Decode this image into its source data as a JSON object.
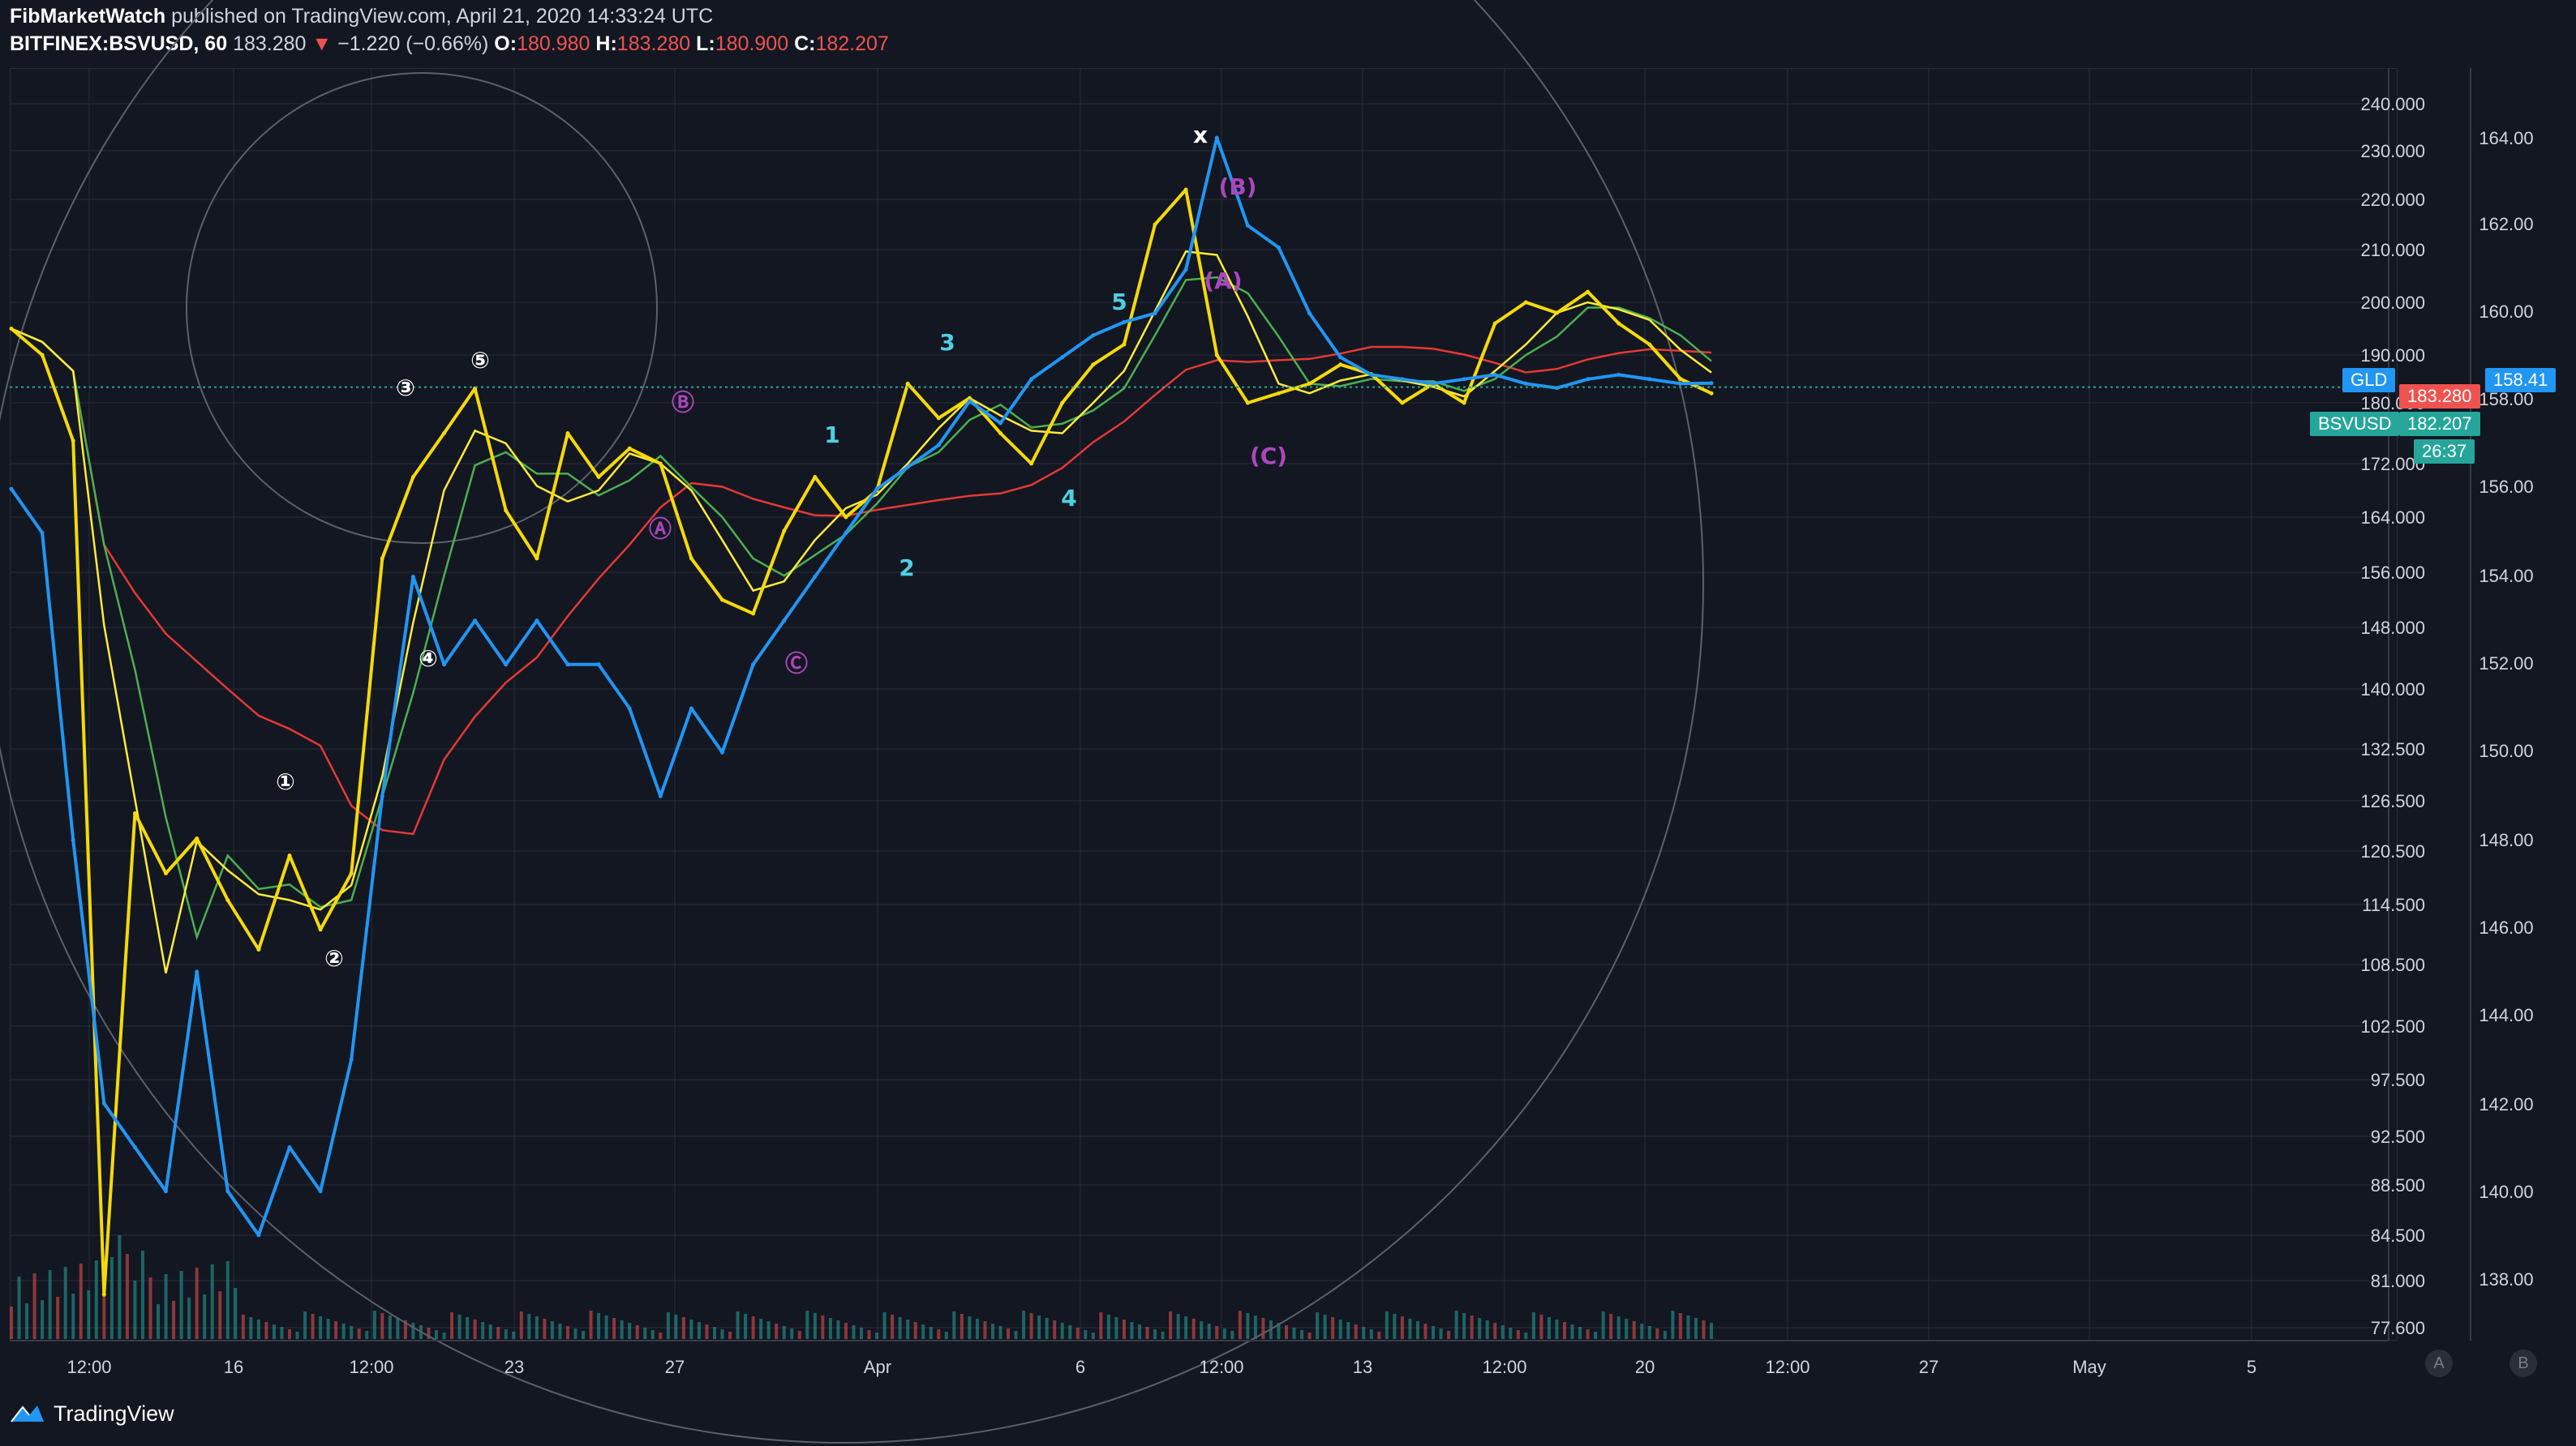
{
  "header": {
    "publisher": "FibMarketWatch",
    "published_text": "published on TradingView.com, April 21, 2020 14:33:24 UTC",
    "symbol": "BITFINEX:BSVUSD, 60",
    "last": "183.280",
    "change_arrow": "▼",
    "change": "−1.220 (−0.66%)",
    "o_label": "O:",
    "o_value": "180.980",
    "h_label": "H:",
    "h_value": "183.280",
    "l_label": "L:",
    "l_value": "180.900",
    "c_label": "C:",
    "c_value": "182.207"
  },
  "price_tags": {
    "gld_label": "GLD",
    "gld_value": "158.41",
    "last_value": "183.280",
    "bsv_label": "BSVUSD",
    "bsv_value": "182.207",
    "countdown": "26:37"
  },
  "footer": {
    "brand": "TradingView",
    "logo_icon": "tradingview-logo-icon"
  },
  "axis_buttons": {
    "a": "A",
    "b": "B"
  },
  "colors": {
    "background": "#131722",
    "grid": "#2a2e39",
    "price_line": "#f5d90a",
    "gld_line": "#2196f3",
    "ma_red": "#e53935",
    "ma_green": "#4caf50",
    "ma_yellow": "#ffeb3b",
    "up": "#26a69a",
    "down": "#ef5350"
  },
  "chart_data": {
    "type": "line",
    "x_ticks": [
      "12:00",
      "16",
      "12:00",
      "23",
      "27",
      "Apr",
      "6",
      "12:00",
      "13",
      "12:00",
      "20",
      "12:00",
      "27",
      "May",
      "5"
    ],
    "left_axis_ticks": [
      "240.000",
      "230.000",
      "220.000",
      "210.000",
      "200.000",
      "190.000",
      "180.000",
      "172.000",
      "164.000",
      "156.000",
      "148.000",
      "140.000",
      "132.500",
      "126.500",
      "120.500",
      "114.500",
      "108.500",
      "102.500",
      "97.500",
      "92.500",
      "88.500",
      "84.500",
      "81.000",
      "77.600"
    ],
    "right_axis_ticks": [
      "164.00",
      "162.00",
      "160.00",
      "158.00",
      "156.00",
      "154.00",
      "152.00",
      "150.00",
      "148.00",
      "146.00",
      "144.00",
      "142.00",
      "140.00",
      "138.00"
    ],
    "series": [
      {
        "name": "BSVUSD",
        "axis": "left",
        "x_index": [
          0,
          4,
          8,
          12,
          16,
          20,
          24,
          28,
          32,
          36,
          40,
          44,
          48,
          52,
          56,
          60,
          64,
          68,
          72,
          76,
          80,
          84,
          88,
          92,
          96,
          100,
          104,
          108,
          112,
          116,
          120,
          124,
          128,
          132,
          136,
          140,
          144,
          148,
          152,
          156,
          160,
          164,
          168,
          172,
          176,
          180,
          184,
          188,
          192,
          196,
          200,
          204,
          208,
          212,
          216,
          220
        ],
        "values": [
          195,
          190,
          175,
          80,
          125,
          118,
          122,
          115,
          110,
          120,
          112,
          118,
          158,
          170,
          176,
          183,
          165,
          158,
          176,
          170,
          174,
          172,
          158,
          152,
          150,
          162,
          170,
          164,
          168,
          184,
          178,
          181,
          176,
          172,
          180,
          188,
          192,
          215,
          222,
          190,
          180,
          182,
          184,
          188,
          186,
          180,
          184,
          180,
          196,
          200,
          198,
          202,
          196,
          192,
          185,
          182
        ]
      },
      {
        "name": "GLD",
        "axis": "right",
        "x_index": [
          0,
          4,
          8,
          12,
          16,
          20,
          24,
          28,
          32,
          36,
          40,
          44,
          48,
          52,
          56,
          60,
          64,
          68,
          72,
          76,
          80,
          84,
          88,
          92,
          96,
          100,
          104,
          108,
          112,
          116,
          120,
          124,
          128,
          132,
          136,
          140,
          144,
          148,
          152,
          156,
          160,
          164,
          168,
          172,
          176,
          180,
          184,
          188,
          192,
          196,
          200,
          204,
          208,
          212,
          216,
          220
        ],
        "values": [
          156,
          155,
          148,
          142,
          141,
          140,
          145,
          140,
          139,
          141,
          140,
          143,
          149,
          154,
          152,
          153,
          152,
          153,
          152,
          152,
          151,
          149,
          151,
          150,
          152,
          153,
          154,
          155,
          156,
          156.5,
          157,
          158,
          157.5,
          158.5,
          159,
          159.5,
          159.8,
          160,
          161,
          164,
          162,
          161.5,
          160,
          159,
          158.6,
          158.5,
          158.4,
          158.5,
          158.6,
          158.4,
          158.3,
          158.5,
          158.6,
          158.5,
          158.4,
          158.41
        ]
      }
    ],
    "annotations": [
      "①",
      "②",
      "③",
      "④",
      "⑤",
      "Ⓐ",
      "Ⓑ",
      "Ⓒ",
      "(A)",
      "(B)",
      "(C)",
      "1",
      "2",
      "3",
      "4",
      "5",
      "x"
    ]
  }
}
